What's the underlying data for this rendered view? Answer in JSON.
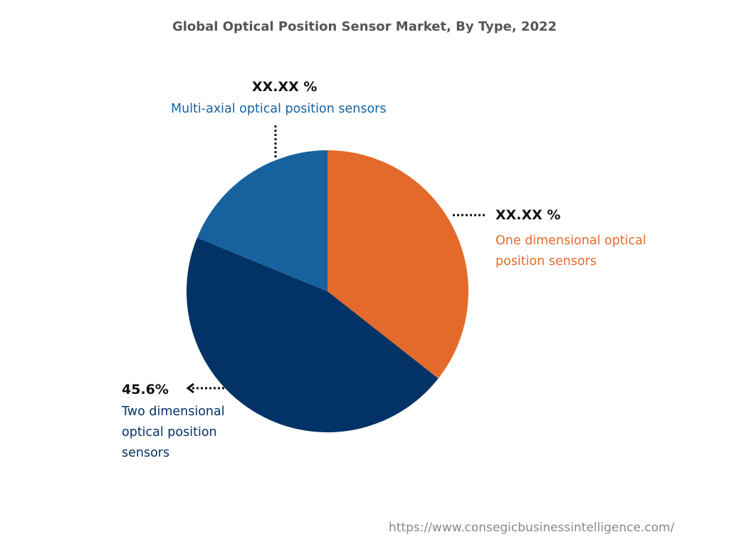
{
  "chart_data": {
    "type": "pie",
    "title": "Global Optical Position Sensor Market, By Type, 2022",
    "slices": [
      {
        "name": "One dimensional optical position sensors",
        "value": 35.6,
        "label": "XX.XX %",
        "color": "#E46A2B"
      },
      {
        "name": "Two dimensional optical position sensors",
        "value": 45.6,
        "label": "45.6%",
        "color": "#033366"
      },
      {
        "name": "Multi-axial optical position sensors",
        "value": 18.8,
        "label": "XX.XX %",
        "color": "#17629E"
      }
    ],
    "start_angle_deg": 0,
    "direction": "clockwise"
  },
  "labels": {
    "one_d_pct": "XX.XX %",
    "one_d_name_1": "One dimensional optical",
    "one_d_name_2": "position sensors",
    "two_d_pct": "45.6%",
    "two_d_name_1": "Two dimensional",
    "two_d_name_2": "optical position",
    "two_d_name_3": "sensors",
    "multi_pct": "XX.XX %",
    "multi_name": "Multi-axial optical position sensors"
  },
  "source_url": "https://www.consegicbusinessintelligence.com/"
}
